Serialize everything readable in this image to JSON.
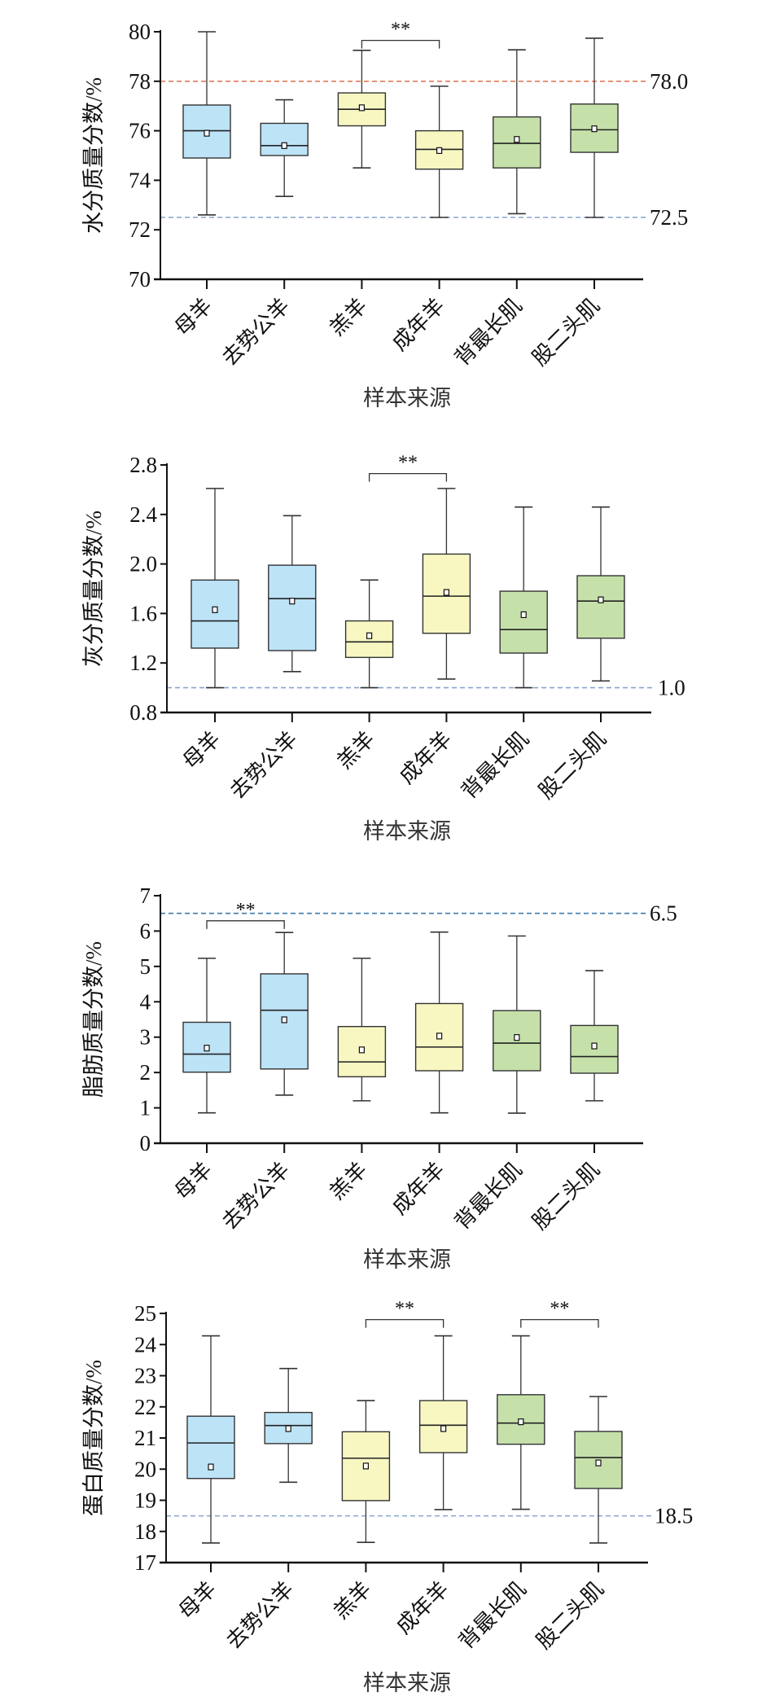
{
  "colors": {
    "blue_box": "#bde3f7",
    "yellow_box": "#f8f7c2",
    "green_box": "#c6e0aa",
    "ref_red": "#e07a5a",
    "ref_blue": "#86a3cc",
    "ref_dark_blue": "#3d7aab"
  },
  "chart_data": [
    {
      "type": "box",
      "ylabel": "水分质量分数/%",
      "xlabel": "样本来源",
      "ylim": [
        70,
        80
      ],
      "yticks": [
        70,
        72,
        74,
        76,
        78,
        80
      ],
      "tick_decimals": 0,
      "categories": [
        "母羊",
        "去势公羊",
        "羔羊",
        "成年羊",
        "背最长肌",
        "股二头肌"
      ],
      "box_colors": [
        "blue_box",
        "blue_box",
        "yellow_box",
        "yellow_box",
        "green_box",
        "green_box"
      ],
      "boxes": [
        {
          "min": 72.6,
          "q1": 74.9,
          "median": 76.0,
          "q3": 77.04,
          "max": 80.0,
          "mean": 75.9
        },
        {
          "min": 73.35,
          "q1": 75.0,
          "median": 75.4,
          "q3": 76.3,
          "max": 77.25,
          "mean": 75.4
        },
        {
          "min": 74.5,
          "q1": 76.2,
          "median": 76.87,
          "q3": 77.53,
          "max": 79.25,
          "mean": 76.93
        },
        {
          "min": 72.5,
          "q1": 74.45,
          "median": 75.25,
          "q3": 76.0,
          "max": 77.8,
          "mean": 75.2
        },
        {
          "min": 72.65,
          "q1": 74.5,
          "median": 75.49,
          "q3": 76.56,
          "max": 79.27,
          "mean": 75.65
        },
        {
          "min": 72.5,
          "q1": 75.13,
          "median": 76.04,
          "q3": 77.08,
          "max": 79.74,
          "mean": 76.08
        }
      ],
      "reference_lines": [
        {
          "value": 78.0,
          "label": "78.0",
          "color": "ref_red"
        },
        {
          "value": 72.5,
          "label": "72.5",
          "color": "ref_blue"
        }
      ],
      "significance": [
        {
          "from": 2,
          "to": 3,
          "label": "**",
          "level": 79.65
        }
      ]
    },
    {
      "type": "box",
      "ylabel": "灰分质量分数/%",
      "xlabel": "样本来源",
      "ylim": [
        0.8,
        2.8
      ],
      "yticks": [
        0.8,
        1.2,
        1.6,
        2.0,
        2.4,
        2.8
      ],
      "tick_decimals": 1,
      "categories": [
        "母羊",
        "去势公羊",
        "羔羊",
        "成年羊",
        "背最长肌",
        "股二头肌"
      ],
      "box_colors": [
        "blue_box",
        "blue_box",
        "yellow_box",
        "yellow_box",
        "green_box",
        "green_box"
      ],
      "boxes": [
        {
          "min": 1.0,
          "q1": 1.32,
          "median": 1.54,
          "q3": 1.87,
          "max": 2.61,
          "mean": 1.63
        },
        {
          "min": 1.13,
          "q1": 1.3,
          "median": 1.72,
          "q3": 1.99,
          "max": 2.39,
          "mean": 1.7
        },
        {
          "min": 1.0,
          "q1": 1.245,
          "median": 1.37,
          "q3": 1.54,
          "max": 1.87,
          "mean": 1.42
        },
        {
          "min": 1.07,
          "q1": 1.44,
          "median": 1.74,
          "q3": 2.08,
          "max": 2.61,
          "mean": 1.77
        },
        {
          "min": 1.0,
          "q1": 1.28,
          "median": 1.47,
          "q3": 1.78,
          "max": 2.46,
          "mean": 1.59
        },
        {
          "min": 1.055,
          "q1": 1.4,
          "median": 1.7,
          "q3": 1.905,
          "max": 2.46,
          "mean": 1.71
        }
      ],
      "reference_lines": [
        {
          "value": 1.0,
          "label": "1.0",
          "color": "ref_blue"
        }
      ],
      "significance": [
        {
          "from": 2,
          "to": 3,
          "label": "**",
          "level": 2.73
        }
      ]
    },
    {
      "type": "box",
      "ylabel": "脂肪质量分数/%",
      "xlabel": "样本来源",
      "ylim": [
        0,
        7
      ],
      "yticks": [
        0,
        1,
        2,
        3,
        4,
        5,
        6,
        7
      ],
      "tick_decimals": 0,
      "categories": [
        "母羊",
        "去势公羊",
        "羔羊",
        "成年羊",
        "背最长肌",
        "股二头肌"
      ],
      "box_colors": [
        "blue_box",
        "blue_box",
        "yellow_box",
        "yellow_box",
        "green_box",
        "green_box"
      ],
      "boxes": [
        {
          "min": 0.86,
          "q1": 2.01,
          "median": 2.52,
          "q3": 3.42,
          "max": 5.23,
          "mean": 2.69
        },
        {
          "min": 1.36,
          "q1": 2.1,
          "median": 3.76,
          "q3": 4.79,
          "max": 5.96,
          "mean": 3.49
        },
        {
          "min": 1.2,
          "q1": 1.88,
          "median": 2.3,
          "q3": 3.3,
          "max": 5.23,
          "mean": 2.64
        },
        {
          "min": 0.86,
          "q1": 2.05,
          "median": 2.72,
          "q3": 3.95,
          "max": 5.97,
          "mean": 3.03
        },
        {
          "min": 0.85,
          "q1": 2.05,
          "median": 2.83,
          "q3": 3.75,
          "max": 5.86,
          "mean": 2.99
        },
        {
          "min": 1.2,
          "q1": 1.98,
          "median": 2.45,
          "q3": 3.33,
          "max": 4.88,
          "mean": 2.75
        }
      ],
      "reference_lines": [
        {
          "value": 6.5,
          "label": "6.5",
          "color": "ref_dark_blue"
        }
      ],
      "significance": [
        {
          "from": 0,
          "to": 1,
          "label": "**",
          "level": 6.29
        }
      ]
    },
    {
      "type": "box",
      "ylabel": "蛋白质量分数/%",
      "xlabel": "样本来源",
      "ylim": [
        17,
        25
      ],
      "yticks": [
        17,
        18,
        19,
        20,
        21,
        22,
        23,
        24,
        25
      ],
      "tick_decimals": 0,
      "categories": [
        "母羊",
        "去势公羊",
        "羔羊",
        "成年羊",
        "背最长肌",
        "股二头肌"
      ],
      "box_colors": [
        "blue_box",
        "blue_box",
        "yellow_box",
        "yellow_box",
        "green_box",
        "green_box"
      ],
      "boxes": [
        {
          "min": 17.63,
          "q1": 19.7,
          "median": 20.84,
          "q3": 21.7,
          "max": 24.28,
          "mean": 20.07
        },
        {
          "min": 19.58,
          "q1": 20.82,
          "median": 21.4,
          "q3": 21.82,
          "max": 23.23,
          "mean": 21.3
        },
        {
          "min": 17.65,
          "q1": 18.99,
          "median": 20.35,
          "q3": 21.2,
          "max": 22.2,
          "mean": 20.1
        },
        {
          "min": 18.7,
          "q1": 20.53,
          "median": 21.41,
          "q3": 22.2,
          "max": 24.28,
          "mean": 21.3
        },
        {
          "min": 18.71,
          "q1": 20.8,
          "median": 21.48,
          "q3": 22.39,
          "max": 24.28,
          "mean": 21.52
        },
        {
          "min": 17.63,
          "q1": 19.38,
          "median": 20.37,
          "q3": 21.21,
          "max": 22.33,
          "mean": 20.2
        }
      ],
      "reference_lines": [
        {
          "value": 18.5,
          "label": "18.5",
          "color": "ref_blue"
        }
      ],
      "significance": [
        {
          "from": 2,
          "to": 3,
          "label": "**",
          "level": 24.8
        },
        {
          "from": 4,
          "to": 5,
          "label": "**",
          "level": 24.8
        }
      ]
    }
  ]
}
